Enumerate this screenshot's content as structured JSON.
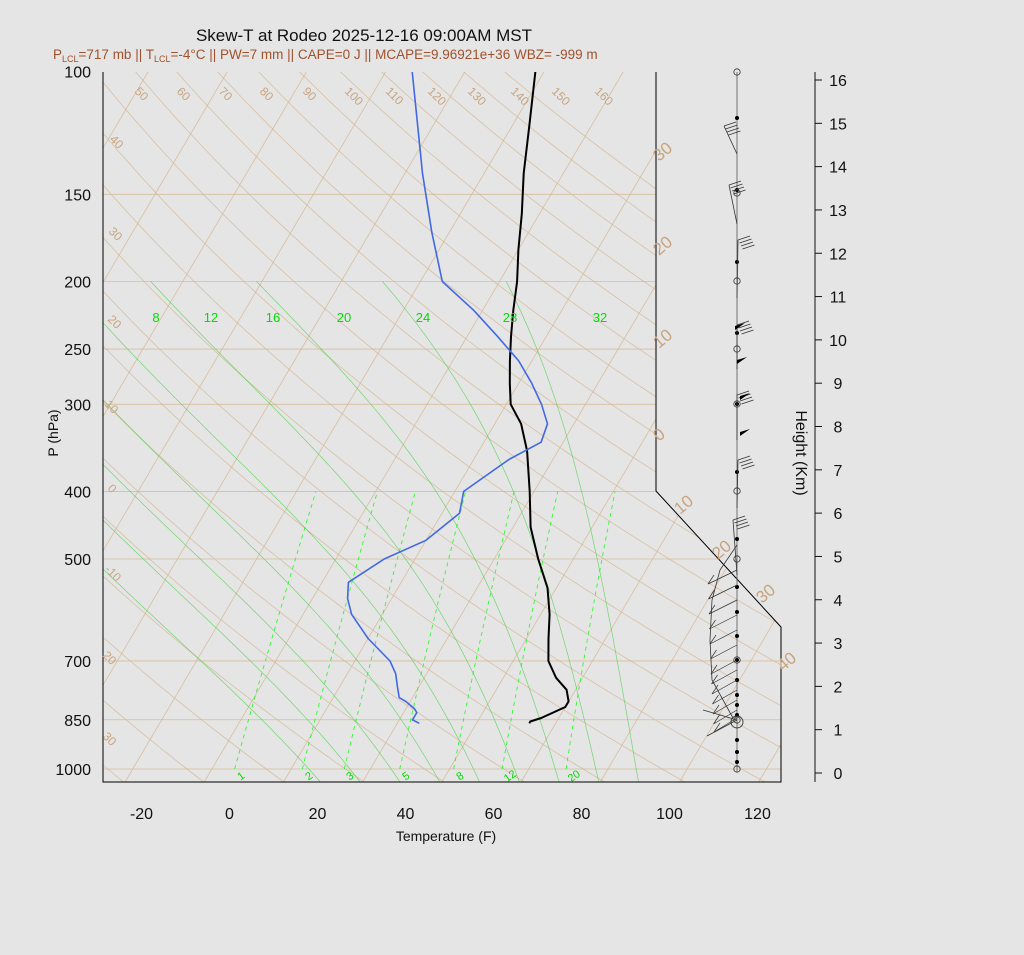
{
  "title": "Skew-T at Rodeo 2025-12-16 09:00AM MST",
  "subtitle": {
    "p_lcl_label": "P",
    "p_lcl_sub": "LCL",
    "p_lcl_value": "=717 mb || T",
    "t_lcl_sub": "LCL",
    "t_lcl_value": "=-4°C || PW=7 mm || CAPE=0 J || MCAPE=9.96921e+36 WBZ= -999 m"
  },
  "colors": {
    "background": "#e5e5e5",
    "panel": "#e5e5e5",
    "temperature": "#000000",
    "dewpoint": "#4169e1",
    "dry_adiabat": "#d2b48c",
    "isotherm": "#d2b48c",
    "isobar": "#d2b48c",
    "mixing_ratio": "#00ff00",
    "moist_adiabat": "#32cd32",
    "subtitle": "#a0522d",
    "tan_label": "#c8a47e"
  },
  "chart_data": {
    "type": "line",
    "title": "Skew-T at Rodeo 2025-12-16 09:00AM MST",
    "xlabel": "Temperature (F)",
    "ylabel": "P (hPa)",
    "y2label": "Height (Km)",
    "x_ticks": [
      "-20",
      "0",
      "20",
      "40",
      "60",
      "80",
      "100",
      "120"
    ],
    "x_tick_values": [
      -20,
      0,
      20,
      40,
      60,
      80,
      100,
      120
    ],
    "p_ticks": [
      "100",
      "150",
      "200",
      "250",
      "300",
      "400",
      "500",
      "700",
      "850",
      "1000"
    ],
    "p_tick_values": [
      100,
      150,
      200,
      250,
      300,
      400,
      500,
      700,
      850,
      1000
    ],
    "height_ticks": [
      "0",
      "1",
      "2",
      "3",
      "4",
      "5",
      "6",
      "7",
      "8",
      "9",
      "10",
      "11",
      "12",
      "13",
      "14",
      "15",
      "16"
    ],
    "height_tick_values": [
      0,
      1,
      2,
      3,
      4,
      5,
      6,
      7,
      8,
      9,
      10,
      11,
      12,
      13,
      14,
      15,
      16
    ],
    "mixing_ratio_top_labels": [
      "8",
      "12",
      "16",
      "20",
      "24",
      "28",
      "32"
    ],
    "mixing_ratio_bottom_labels": [
      "1",
      "2",
      "3",
      "5",
      "8",
      "12",
      "20"
    ],
    "dry_adiabat_labels": [
      "50",
      "60",
      "70",
      "80",
      "90",
      "100",
      "110",
      "120",
      "130",
      "140",
      "150",
      "160"
    ],
    "isotherm_labels": [
      "40",
      "30",
      "20",
      "10",
      "0",
      "-10",
      "20",
      "30"
    ],
    "isotherm_labels_right": [
      "30",
      "20",
      "10",
      "0",
      "10",
      "20",
      "30",
      "40"
    ],
    "series": [
      {
        "name": "Temperature",
        "pressure": [
          860,
          855,
          845,
          815,
          800,
          770,
          740,
          700,
          650,
          600,
          550,
          500,
          450,
          400,
          350,
          320,
          300,
          280,
          260,
          240,
          220,
          200,
          180,
          160,
          140,
          120,
          100
        ],
        "temperature": [
          62,
          62,
          64,
          68,
          68,
          66,
          62,
          58,
          55,
          52,
          48,
          42,
          36,
          31,
          25,
          20,
          15,
          12,
          9,
          6,
          3,
          0,
          -4,
          -8,
          -13,
          -18,
          -24
        ]
      },
      {
        "name": "Dewpoint",
        "pressure": [
          860,
          850,
          830,
          820,
          800,
          790,
          760,
          730,
          700,
          650,
          600,
          570,
          540,
          500,
          470,
          430,
          400,
          360,
          340,
          320,
          300,
          280,
          260,
          240,
          220,
          200,
          170,
          140,
          100
        ],
        "temperature": [
          37,
          35,
          35,
          34,
          31,
          29,
          27,
          25,
          22,
          14,
          7,
          4,
          2,
          7,
          14,
          18,
          16,
          22,
          27,
          26,
          22,
          17,
          11,
          3,
          -6,
          -17,
          -26,
          -36,
          -52
        ]
      }
    ]
  }
}
